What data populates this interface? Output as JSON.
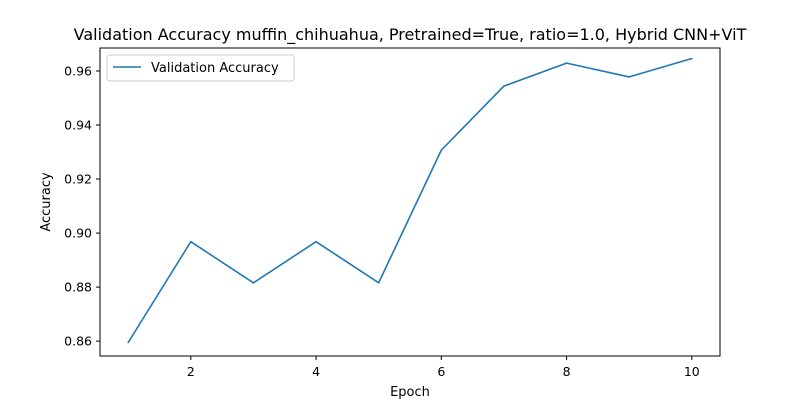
{
  "chart_data": {
    "type": "line",
    "title": "Validation Accuracy muffin_chihuahua, Pretrained=True, ratio=1.0, Hybrid CNN+ViT",
    "xlabel": "Epoch",
    "ylabel": "Accuracy",
    "xlim": [
      0.55,
      10.45
    ],
    "ylim": [
      0.8545,
      0.9685
    ],
    "xticks": [
      2,
      4,
      6,
      8,
      10
    ],
    "yticks": [
      0.86,
      0.88,
      0.9,
      0.92,
      0.94,
      0.96
    ],
    "ytick_labels": [
      "0.86",
      "0.88",
      "0.90",
      "0.92",
      "0.94",
      "0.96"
    ],
    "grid": false,
    "legend": "top-left",
    "series": [
      {
        "name": "Validation Accuracy",
        "color": "#1f77b4",
        "x": [
          1,
          2,
          3,
          4,
          5,
          6,
          7,
          8,
          9,
          10
        ],
        "y": [
          0.8595,
          0.8968,
          0.8816,
          0.8968,
          0.8816,
          0.9307,
          0.9544,
          0.9629,
          0.9578,
          0.9646
        ]
      }
    ]
  }
}
